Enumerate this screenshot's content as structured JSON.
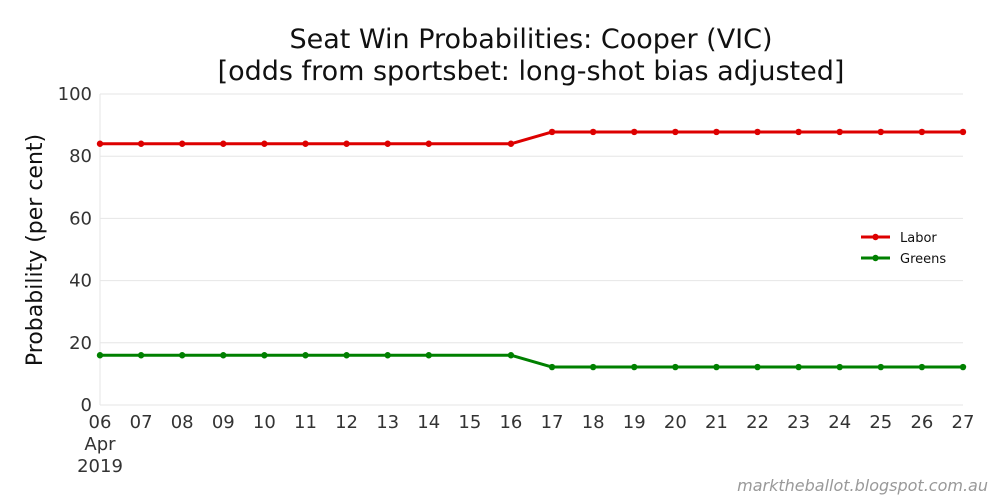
{
  "chart_data": {
    "type": "line",
    "title": [
      "Seat Win Probabilities: Cooper (VIC)",
      "[odds from sportsbet: long-shot bias adjusted]"
    ],
    "xlabel": "",
    "ylabel": "Probability (per cent)",
    "ylim": [
      0,
      100
    ],
    "yticks": [
      0,
      20,
      40,
      60,
      80,
      100
    ],
    "xticks": [
      "06",
      "07",
      "08",
      "09",
      "10",
      "11",
      "12",
      "13",
      "14",
      "15",
      "16",
      "17",
      "18",
      "19",
      "20",
      "21",
      "22",
      "23",
      "24",
      "25",
      "26",
      "27"
    ],
    "xtick_first_sublabel": [
      "Apr",
      "2019"
    ],
    "x_dates": [
      "2019-04-06",
      "2019-04-07",
      "2019-04-08",
      "2019-04-09",
      "2019-04-10",
      "2019-04-11",
      "2019-04-12",
      "2019-04-13",
      "2019-04-14",
      "2019-04-16",
      "2019-04-17",
      "2019-04-18",
      "2019-04-19",
      "2019-04-20",
      "2019-04-21",
      "2019-04-22",
      "2019-04-23",
      "2019-04-24",
      "2019-04-25",
      "2019-04-26",
      "2019-04-27"
    ],
    "series": [
      {
        "name": "Labor",
        "color": "#dd0000",
        "values": [
          84,
          84,
          84,
          84,
          84,
          84,
          84,
          84,
          84,
          84,
          87.8,
          87.8,
          87.8,
          87.8,
          87.8,
          87.8,
          87.8,
          87.8,
          87.8,
          87.8,
          87.8
        ]
      },
      {
        "name": "Greens",
        "color": "#008000",
        "values": [
          16,
          16,
          16,
          16,
          16,
          16,
          16,
          16,
          16,
          16,
          12.2,
          12.2,
          12.2,
          12.2,
          12.2,
          12.2,
          12.2,
          12.2,
          12.2,
          12.2,
          12.2
        ]
      }
    ],
    "grid": true,
    "legend_position": "right"
  },
  "watermark": "marktheballot.blogspot.com.au"
}
